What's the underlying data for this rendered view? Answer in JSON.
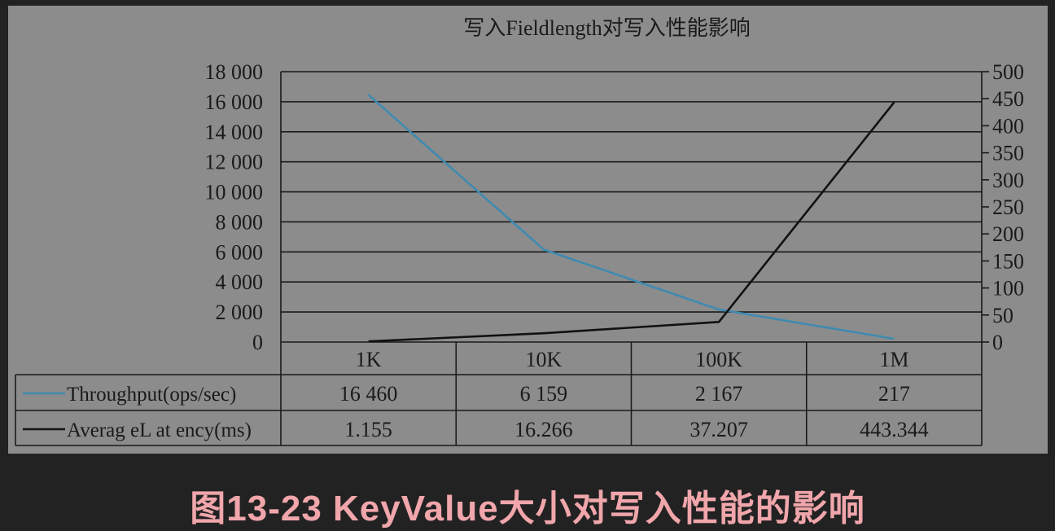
{
  "caption": "图13-23 KeyValue大小对写入性能的影响",
  "colors": {
    "panel_bg": "#8c8c8c",
    "page_bg": "#222222",
    "caption": "#f0a6ab",
    "throughput_line": "#3f8ab0",
    "latency_line": "#111111",
    "grid": "#1a1a1a"
  },
  "chart_data": {
    "type": "line",
    "title": "写入Fieldlength对写入性能影响",
    "categories": [
      "1K",
      "10K",
      "100K",
      "1M"
    ],
    "series": [
      {
        "name": "Throughput(ops/sec)",
        "axis": "left",
        "color": "#3f8ab0",
        "values": [
          16460,
          6159,
          2167,
          217
        ],
        "value_labels": [
          "16 460",
          "6 159",
          "2 167",
          "217"
        ]
      },
      {
        "name": "Averag eL at ency(ms)",
        "axis": "right",
        "color": "#111111",
        "values": [
          1.155,
          16.266,
          37.207,
          443.344
        ],
        "value_labels": [
          "1.155",
          "16.266",
          "37.207",
          "443.344"
        ]
      }
    ],
    "left_axis": {
      "ylim": [
        0,
        18000
      ],
      "ticks": [
        0,
        2000,
        4000,
        6000,
        8000,
        10000,
        12000,
        14000,
        16000,
        18000
      ],
      "tick_labels": [
        "0",
        "2 000",
        "4 000",
        "6 000",
        "8 000",
        "10 000",
        "12 000",
        "14 000",
        "16 000",
        "18 000"
      ]
    },
    "right_axis": {
      "ylim": [
        0,
        500
      ],
      "ticks": [
        0,
        50,
        100,
        150,
        200,
        250,
        300,
        350,
        400,
        450,
        500
      ],
      "tick_labels": [
        "0",
        "50",
        "100",
        "150",
        "200",
        "250",
        "300",
        "350",
        "400",
        "450",
        "500"
      ]
    },
    "grid": true,
    "legend": "data-table"
  }
}
